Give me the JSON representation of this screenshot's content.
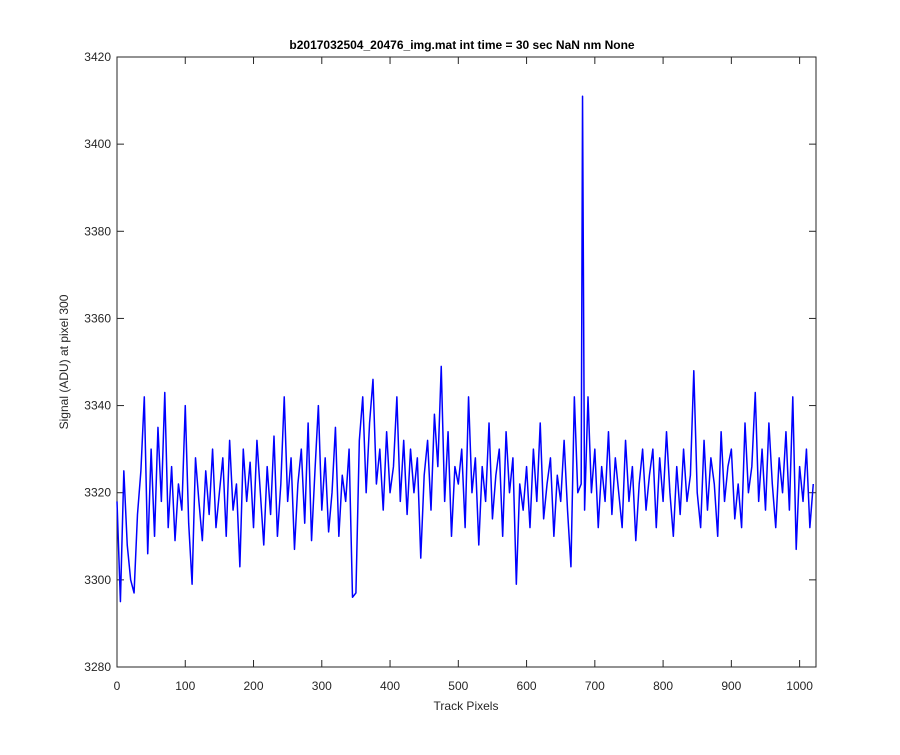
{
  "chart_data": {
    "type": "line",
    "title": "b2017032504_20476_img.mat int time = 30 sec  NaN nm None",
    "x_label": "Track Pixels",
    "y_label": "Signal (ADU) at pixel 300",
    "xlim": [
      0,
      1024
    ],
    "ylim": [
      3280,
      3420
    ],
    "xticks": [
      0,
      100,
      200,
      300,
      400,
      500,
      600,
      700,
      800,
      900,
      1000
    ],
    "yticks": [
      3280,
      3300,
      3320,
      3340,
      3360,
      3380,
      3400,
      3420
    ],
    "grid": false,
    "x": [
      0,
      5,
      10,
      15,
      20,
      25,
      30,
      35,
      40,
      45,
      50,
      55,
      60,
      65,
      70,
      75,
      80,
      85,
      90,
      95,
      100,
      105,
      110,
      115,
      120,
      125,
      130,
      135,
      140,
      145,
      150,
      155,
      160,
      165,
      170,
      175,
      180,
      185,
      190,
      195,
      200,
      205,
      210,
      215,
      220,
      225,
      230,
      235,
      240,
      245,
      250,
      255,
      260,
      265,
      270,
      275,
      280,
      285,
      290,
      295,
      300,
      305,
      310,
      315,
      320,
      325,
      330,
      335,
      340,
      345,
      350,
      355,
      360,
      365,
      370,
      375,
      380,
      385,
      390,
      395,
      400,
      405,
      410,
      415,
      420,
      425,
      430,
      435,
      440,
      445,
      450,
      455,
      460,
      465,
      470,
      475,
      480,
      485,
      490,
      495,
      500,
      505,
      510,
      515,
      520,
      525,
      530,
      535,
      540,
      545,
      550,
      555,
      560,
      565,
      570,
      575,
      580,
      585,
      590,
      595,
      600,
      605,
      610,
      615,
      620,
      625,
      630,
      635,
      640,
      645,
      650,
      655,
      660,
      665,
      670,
      675,
      680,
      682,
      685,
      690,
      695,
      700,
      705,
      710,
      715,
      720,
      725,
      730,
      735,
      740,
      745,
      750,
      755,
      760,
      765,
      770,
      775,
      780,
      785,
      790,
      795,
      800,
      805,
      810,
      815,
      820,
      825,
      830,
      835,
      840,
      845,
      850,
      855,
      860,
      865,
      870,
      875,
      880,
      885,
      890,
      895,
      900,
      905,
      910,
      915,
      920,
      925,
      930,
      935,
      940,
      945,
      950,
      955,
      960,
      965,
      970,
      975,
      980,
      985,
      990,
      995,
      1000,
      1005,
      1010,
      1015,
      1020
    ],
    "series": [
      {
        "color": "#0000ff",
        "values": [
          3318,
          3295,
          3325,
          3308,
          3300,
          3297,
          3315,
          3325,
          3342,
          3306,
          3330,
          3310,
          3335,
          3318,
          3343,
          3312,
          3326,
          3309,
          3322,
          3316,
          3340,
          3313,
          3299,
          3328,
          3318,
          3309,
          3325,
          3315,
          3330,
          3312,
          3320,
          3328,
          3310,
          3332,
          3316,
          3322,
          3303,
          3330,
          3318,
          3327,
          3312,
          3332,
          3320,
          3308,
          3326,
          3315,
          3333,
          3310,
          3322,
          3342,
          3318,
          3328,
          3307,
          3322,
          3330,
          3313,
          3336,
          3309,
          3325,
          3340,
          3316,
          3328,
          3311,
          3320,
          3335,
          3310,
          3324,
          3318,
          3330,
          3296,
          3297,
          3332,
          3342,
          3320,
          3336,
          3346,
          3322,
          3330,
          3316,
          3334,
          3320,
          3326,
          3342,
          3318,
          3332,
          3315,
          3330,
          3320,
          3328,
          3305,
          3324,
          3332,
          3316,
          3338,
          3326,
          3349,
          3318,
          3334,
          3310,
          3326,
          3322,
          3330,
          3312,
          3342,
          3320,
          3328,
          3308,
          3326,
          3318,
          3336,
          3314,
          3324,
          3330,
          3310,
          3334,
          3320,
          3328,
          3299,
          3322,
          3316,
          3326,
          3312,
          3330,
          3318,
          3336,
          3314,
          3322,
          3328,
          3310,
          3324,
          3318,
          3332,
          3316,
          3303,
          3342,
          3320,
          3322,
          3411,
          3316,
          3342,
          3320,
          3330,
          3312,
          3326,
          3318,
          3334,
          3315,
          3328,
          3320,
          3312,
          3332,
          3318,
          3326,
          3309,
          3322,
          3330,
          3316,
          3324,
          3330,
          3312,
          3328,
          3318,
          3334,
          3320,
          3310,
          3326,
          3315,
          3330,
          3318,
          3324,
          3348,
          3320,
          3312,
          3332,
          3316,
          3328,
          3322,
          3310,
          3334,
          3318,
          3326,
          3330,
          3314,
          3322,
          3312,
          3336,
          3320,
          3326,
          3343,
          3318,
          3330,
          3316,
          3336,
          3322,
          3312,
          3328,
          3320,
          3334,
          3316,
          3342,
          3307,
          3326,
          3318,
          3330,
          3312,
          3322
        ]
      }
    ]
  }
}
